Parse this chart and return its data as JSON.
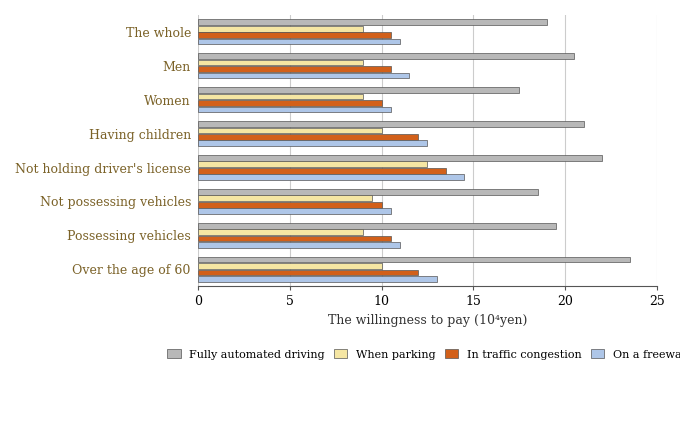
{
  "categories": [
    "The whole",
    "Men",
    "Women",
    "Having children",
    "Not holding driver's license",
    "Not possessing vehicles",
    "Possessing vehicles",
    "Over the age of 60"
  ],
  "series": {
    "Fully automated driving": [
      19.0,
      20.5,
      17.5,
      21.0,
      22.0,
      18.5,
      19.5,
      23.5
    ],
    "When parking": [
      9.0,
      9.0,
      9.0,
      10.0,
      12.5,
      9.5,
      9.0,
      10.0
    ],
    "In traffic congestion": [
      10.5,
      10.5,
      10.0,
      12.0,
      13.5,
      10.0,
      10.5,
      12.0
    ],
    "On a freeway": [
      11.0,
      11.5,
      10.5,
      12.5,
      14.5,
      10.5,
      11.0,
      13.0
    ]
  },
  "colors": {
    "Fully automated driving": "#b8b8b8",
    "When parking": "#f5e6a3",
    "In traffic congestion": "#d2601a",
    "On a freeway": "#aec6e8"
  },
  "xlabel": "The willingness to pay (10⁴yen)",
  "xlim": [
    0,
    25
  ],
  "xticks": [
    0,
    5,
    10,
    15,
    20,
    25
  ],
  "bar_height": 0.17,
  "legend_order": [
    "Fully automated driving",
    "When parking",
    "In traffic congestion",
    "On a freeway"
  ],
  "label_color": "#7b6228",
  "edge_color": "#555555",
  "grid_color": "#cccccc"
}
